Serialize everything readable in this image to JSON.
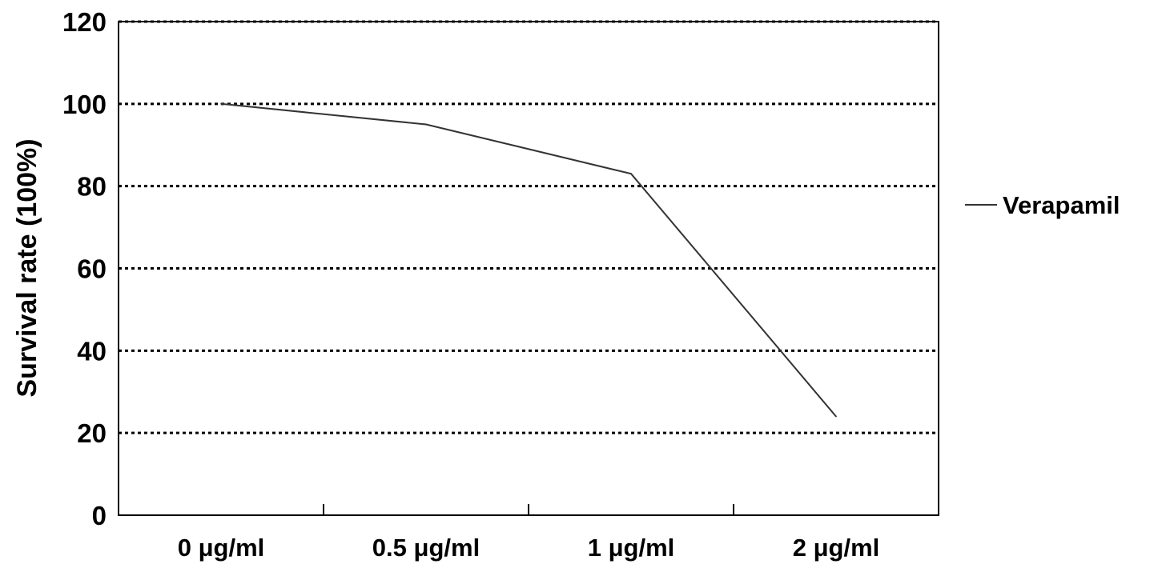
{
  "chart_data": {
    "type": "line",
    "title": "",
    "xlabel": "",
    "ylabel": "Survival rate (100%)",
    "ylim": [
      0,
      120
    ],
    "yticks": [
      "0",
      "20",
      "40",
      "60",
      "80",
      "100",
      "120"
    ],
    "categories": [
      "0 μg/ml",
      "0.5 μg/ml",
      "1 μg/ml",
      "2 μg/ml"
    ],
    "series": [
      {
        "name": "Verapamil",
        "values": [
          100,
          95,
          83,
          24
        ],
        "color": "#333333"
      }
    ],
    "grid": true,
    "grid_style": "dotted",
    "legend_position": "right"
  }
}
